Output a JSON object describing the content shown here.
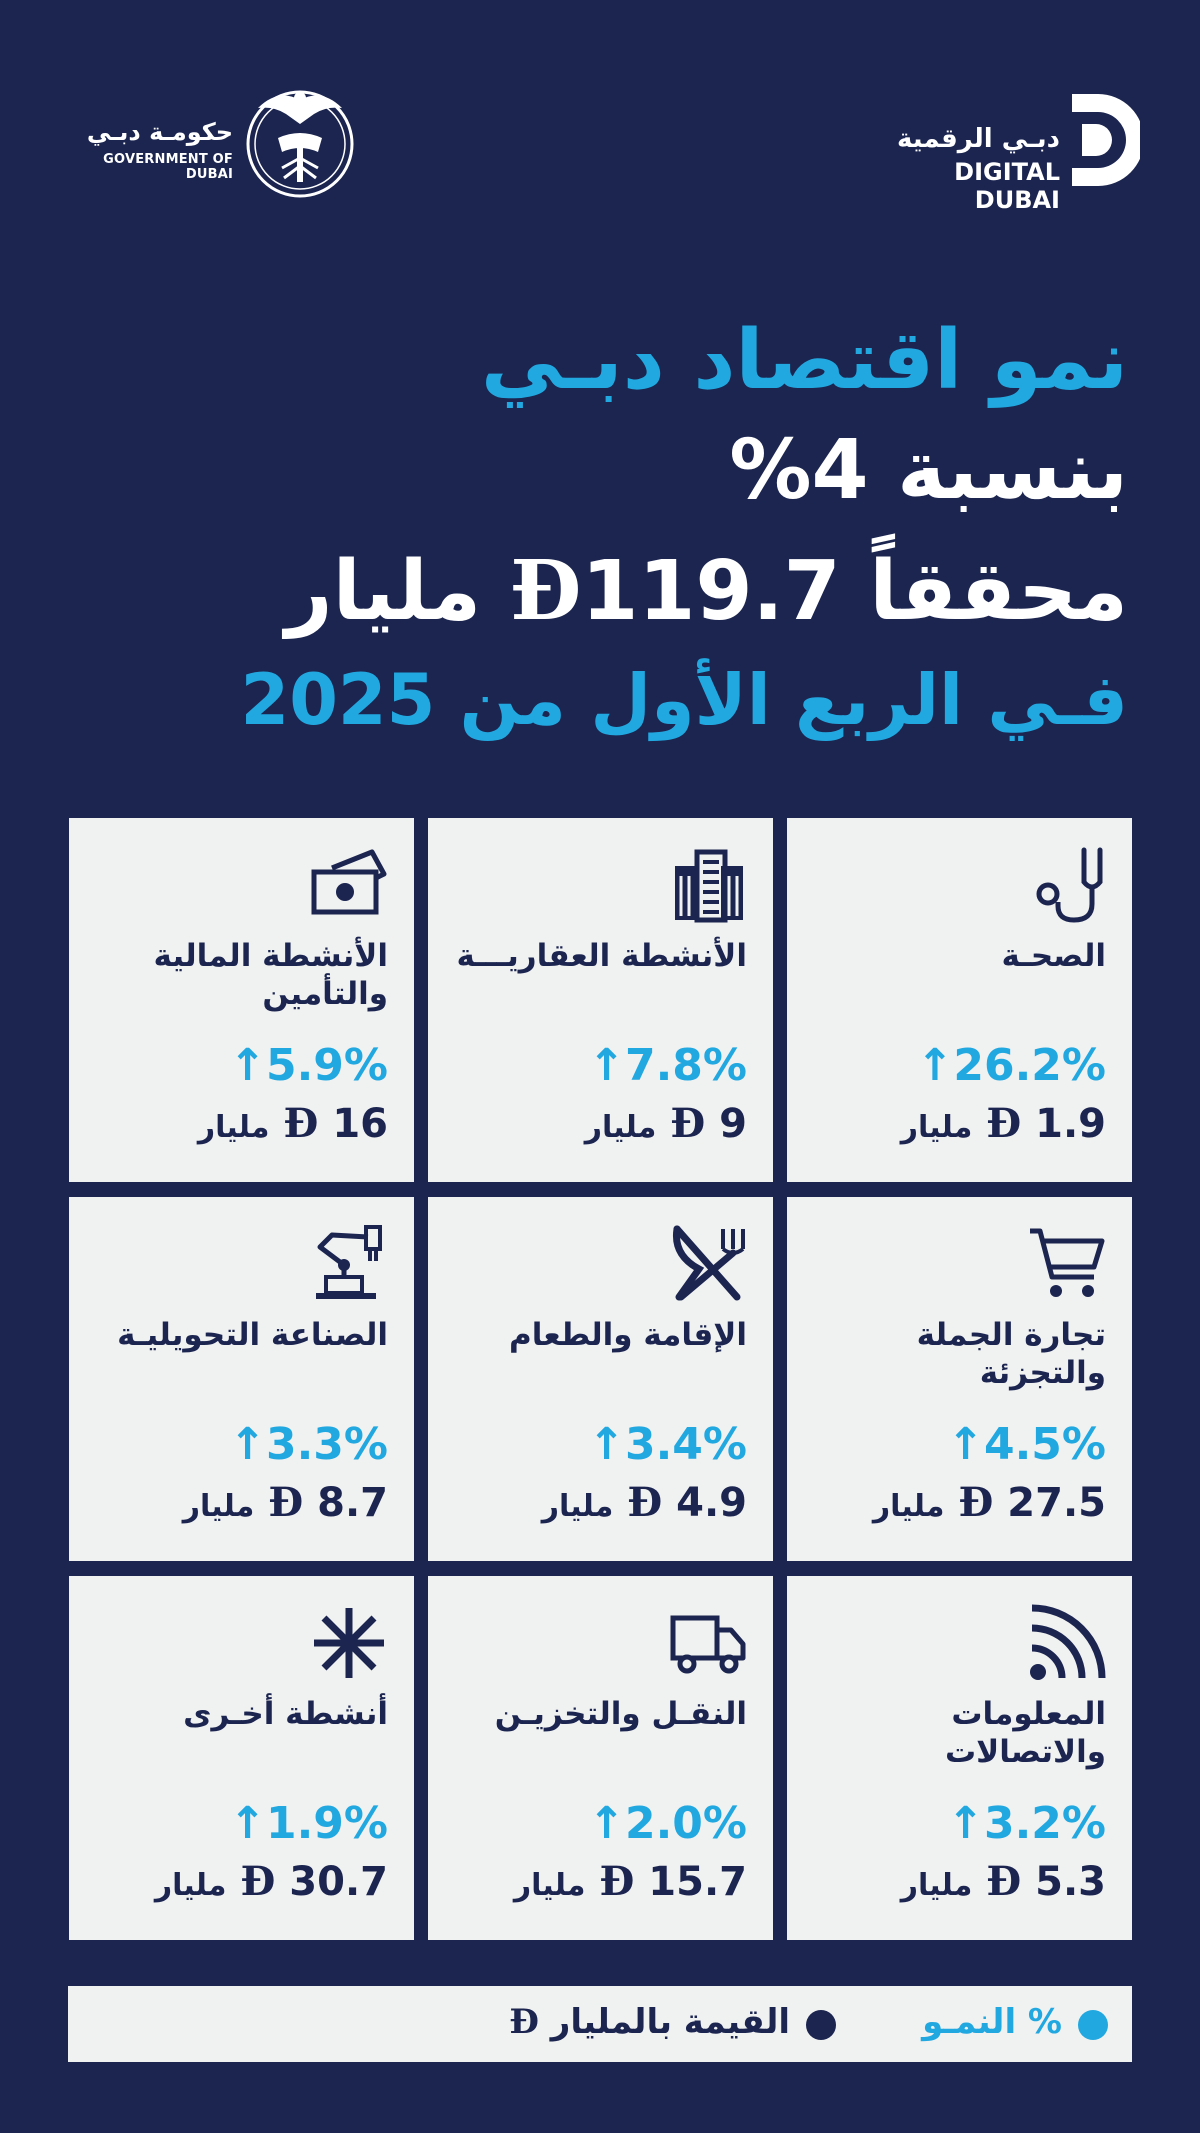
{
  "header": {
    "gov_logo_ar": "حكومـة دبـي",
    "gov_logo_en": "GOVERNMENT OF DUBAI",
    "dd_logo_ar": "دبـي الرقمية",
    "dd_logo_en": "DIGITAL DUBAI"
  },
  "headline": {
    "line1": "نمو اقتصاد دبـي",
    "line2": "بنسبة 4%",
    "line3_word": "محققاً",
    "line3_value": "119.7",
    "line3_symbol": "Đ",
    "line3_unit": "مليار",
    "line4": "فـي الربع الأول من 2025"
  },
  "currency_symbol": "Đ",
  "sectors": [
    {
      "title": "الصحـة",
      "growth": "↑26.2%",
      "value": "1.9",
      "unit": "مليار",
      "icon": "stethoscope-icon"
    },
    {
      "title": "الأنشطة العقاريـــة",
      "growth": "↑7.8%",
      "value": "9",
      "unit": "مليار",
      "icon": "building-icon"
    },
    {
      "title": "الأنشطة المالية والتأمين",
      "growth": "↑5.9%",
      "value": "16",
      "unit": "مليار",
      "icon": "money-icon"
    },
    {
      "title": "تجارة الجملة والتجزئة",
      "growth": "↑4.5%",
      "value": "27.5",
      "unit": "مليار",
      "icon": "cart-icon"
    },
    {
      "title": "الإقامة والطعام",
      "growth": "↑3.4%",
      "value": "4.9",
      "unit": "مليار",
      "icon": "fork-knife-icon"
    },
    {
      "title": "الصناعة التحويليـة",
      "growth": "↑3.3%",
      "value": "8.7",
      "unit": "مليار",
      "icon": "robot-arm-icon"
    },
    {
      "title": "المعلومات والاتصالات",
      "growth": "↑3.2%",
      "value": "5.3",
      "unit": "مليار",
      "icon": "signal-icon"
    },
    {
      "title": "النقـل والتخزيـن",
      "growth": "↑2.0%",
      "value": "15.7",
      "unit": "مليار",
      "icon": "truck-icon"
    },
    {
      "title": "أنشطة أخـرى",
      "growth": "↑1.9%",
      "value": "30.7",
      "unit": "مليار",
      "icon": "asterisk-icon"
    }
  ],
  "legend": {
    "growth_label": "% النمـو",
    "value_label": "القيمة بالمليار",
    "value_symbol": "Đ",
    "growth_color": "#22a8e0",
    "value_color": "#1b2550"
  },
  "colors": {
    "background": "#1b2550",
    "accent": "#22a8e0",
    "card": "#f0f1f1"
  }
}
